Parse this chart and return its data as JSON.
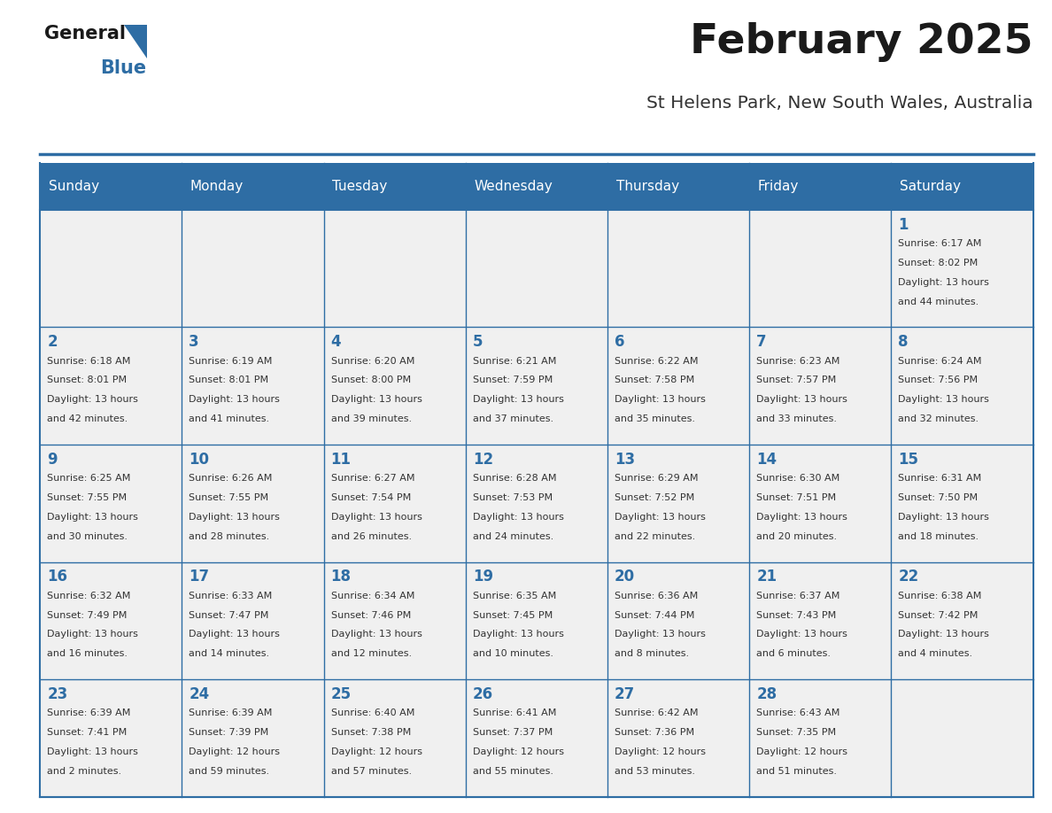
{
  "title": "February 2025",
  "subtitle": "St Helens Park, New South Wales, Australia",
  "days_of_week": [
    "Sunday",
    "Monday",
    "Tuesday",
    "Wednesday",
    "Thursday",
    "Friday",
    "Saturday"
  ],
  "header_bg": "#2E6DA4",
  "header_text": "#FFFFFF",
  "cell_bg_light": "#F0F0F0",
  "border_color": "#2E6DA4",
  "title_color": "#1a1a1a",
  "subtitle_color": "#333333",
  "day_num_color": "#2E6DA4",
  "info_color": "#333333",
  "logo_general_color": "#1a1a1a",
  "logo_blue_color": "#2E6DA4",
  "calendar_data": [
    [
      null,
      null,
      null,
      null,
      null,
      null,
      {
        "day": 1,
        "sunrise": "6:17 AM",
        "sunset": "8:02 PM",
        "daylight_h": "13 hours",
        "daylight_m": "and 44 minutes."
      }
    ],
    [
      {
        "day": 2,
        "sunrise": "6:18 AM",
        "sunset": "8:01 PM",
        "daylight_h": "13 hours",
        "daylight_m": "and 42 minutes."
      },
      {
        "day": 3,
        "sunrise": "6:19 AM",
        "sunset": "8:01 PM",
        "daylight_h": "13 hours",
        "daylight_m": "and 41 minutes."
      },
      {
        "day": 4,
        "sunrise": "6:20 AM",
        "sunset": "8:00 PM",
        "daylight_h": "13 hours",
        "daylight_m": "and 39 minutes."
      },
      {
        "day": 5,
        "sunrise": "6:21 AM",
        "sunset": "7:59 PM",
        "daylight_h": "13 hours",
        "daylight_m": "and 37 minutes."
      },
      {
        "day": 6,
        "sunrise": "6:22 AM",
        "sunset": "7:58 PM",
        "daylight_h": "13 hours",
        "daylight_m": "and 35 minutes."
      },
      {
        "day": 7,
        "sunrise": "6:23 AM",
        "sunset": "7:57 PM",
        "daylight_h": "13 hours",
        "daylight_m": "and 33 minutes."
      },
      {
        "day": 8,
        "sunrise": "6:24 AM",
        "sunset": "7:56 PM",
        "daylight_h": "13 hours",
        "daylight_m": "and 32 minutes."
      }
    ],
    [
      {
        "day": 9,
        "sunrise": "6:25 AM",
        "sunset": "7:55 PM",
        "daylight_h": "13 hours",
        "daylight_m": "and 30 minutes."
      },
      {
        "day": 10,
        "sunrise": "6:26 AM",
        "sunset": "7:55 PM",
        "daylight_h": "13 hours",
        "daylight_m": "and 28 minutes."
      },
      {
        "day": 11,
        "sunrise": "6:27 AM",
        "sunset": "7:54 PM",
        "daylight_h": "13 hours",
        "daylight_m": "and 26 minutes."
      },
      {
        "day": 12,
        "sunrise": "6:28 AM",
        "sunset": "7:53 PM",
        "daylight_h": "13 hours",
        "daylight_m": "and 24 minutes."
      },
      {
        "day": 13,
        "sunrise": "6:29 AM",
        "sunset": "7:52 PM",
        "daylight_h": "13 hours",
        "daylight_m": "and 22 minutes."
      },
      {
        "day": 14,
        "sunrise": "6:30 AM",
        "sunset": "7:51 PM",
        "daylight_h": "13 hours",
        "daylight_m": "and 20 minutes."
      },
      {
        "day": 15,
        "sunrise": "6:31 AM",
        "sunset": "7:50 PM",
        "daylight_h": "13 hours",
        "daylight_m": "and 18 minutes."
      }
    ],
    [
      {
        "day": 16,
        "sunrise": "6:32 AM",
        "sunset": "7:49 PM",
        "daylight_h": "13 hours",
        "daylight_m": "and 16 minutes."
      },
      {
        "day": 17,
        "sunrise": "6:33 AM",
        "sunset": "7:47 PM",
        "daylight_h": "13 hours",
        "daylight_m": "and 14 minutes."
      },
      {
        "day": 18,
        "sunrise": "6:34 AM",
        "sunset": "7:46 PM",
        "daylight_h": "13 hours",
        "daylight_m": "and 12 minutes."
      },
      {
        "day": 19,
        "sunrise": "6:35 AM",
        "sunset": "7:45 PM",
        "daylight_h": "13 hours",
        "daylight_m": "and 10 minutes."
      },
      {
        "day": 20,
        "sunrise": "6:36 AM",
        "sunset": "7:44 PM",
        "daylight_h": "13 hours",
        "daylight_m": "and 8 minutes."
      },
      {
        "day": 21,
        "sunrise": "6:37 AM",
        "sunset": "7:43 PM",
        "daylight_h": "13 hours",
        "daylight_m": "and 6 minutes."
      },
      {
        "day": 22,
        "sunrise": "6:38 AM",
        "sunset": "7:42 PM",
        "daylight_h": "13 hours",
        "daylight_m": "and 4 minutes."
      }
    ],
    [
      {
        "day": 23,
        "sunrise": "6:39 AM",
        "sunset": "7:41 PM",
        "daylight_h": "13 hours",
        "daylight_m": "and 2 minutes."
      },
      {
        "day": 24,
        "sunrise": "6:39 AM",
        "sunset": "7:39 PM",
        "daylight_h": "12 hours",
        "daylight_m": "and 59 minutes."
      },
      {
        "day": 25,
        "sunrise": "6:40 AM",
        "sunset": "7:38 PM",
        "daylight_h": "12 hours",
        "daylight_m": "and 57 minutes."
      },
      {
        "day": 26,
        "sunrise": "6:41 AM",
        "sunset": "7:37 PM",
        "daylight_h": "12 hours",
        "daylight_m": "and 55 minutes."
      },
      {
        "day": 27,
        "sunrise": "6:42 AM",
        "sunset": "7:36 PM",
        "daylight_h": "12 hours",
        "daylight_m": "and 53 minutes."
      },
      {
        "day": 28,
        "sunrise": "6:43 AM",
        "sunset": "7:35 PM",
        "daylight_h": "12 hours",
        "daylight_m": "and 51 minutes."
      },
      null
    ]
  ]
}
